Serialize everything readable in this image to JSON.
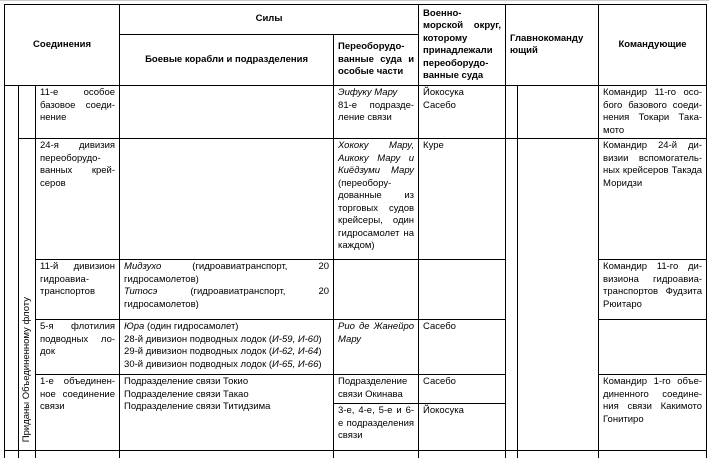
{
  "header": {
    "formations": "Соединения",
    "forces": "Силы",
    "warships": "Боевые корабли и подразделения",
    "converted": "Переоборудо­ванные суда и особые части",
    "district": "Военно-морской округ, которому принадлежали переоборудо­ванные суда",
    "commander_in_chief": "Главнокомандую­щий",
    "commanders": "Командующие"
  },
  "side_label": "Приданы Объединенному флоту",
  "rows": {
    "r1": {
      "formation": "11-е особое базовое соеди­нение",
      "converted_lines": [
        [
          {
            "t": "Эифуку Мару",
            "i": true
          }
        ],
        [
          "81-е подразде­ление связи"
        ]
      ],
      "district_lines": [
        [
          "Йокосука"
        ],
        [
          "Сасебо"
        ]
      ],
      "commander": "Командир 11-го осо­бого базового соеди­нения Токари Така­мото"
    },
    "r2": {
      "formation": "24-я дивизия переоборудо­ванных крей­серов",
      "converted_lines": [
        [
          {
            "t": "Хококу Мару, Аикоку Мару и Киёдзуми Мару ",
            "i": true
          },
          "(переобору­дованные из торговых судов крейсеры, один гидросамолет на каждом)"
        ]
      ],
      "district_lines": [
        [
          "Куре"
        ]
      ],
      "commander": "Командир 24-й ди­визии вспомогатель­ных крейсеров Такэда Моридзи"
    },
    "r3": {
      "formation": "11-й дивизион гидроавиа­транспортов",
      "ships_lines": [
        [
          {
            "t": "Мидзухо",
            "i": true
          },
          " (гидроавиатранспорт, 20 гидросамоле­тов)"
        ],
        [
          {
            "t": "Титосэ",
            "i": true
          },
          " (гидроавиатранспорт, 20 гидросамоле­тов)"
        ]
      ],
      "commander": "Командир 11-го ди­визиона гидроавиа­транспортов Фудзита Рюитаро"
    },
    "r4": {
      "formation": "5-я флотилия подводных ло­док",
      "ships_lines": [
        [
          {
            "t": "Юра",
            "i": true
          },
          " (один гидросамолет)"
        ],
        [
          "28-й дивизион подводных лодок (",
          {
            "t": "И-59, И-60",
            "i": true
          },
          ")"
        ],
        [
          "29-й дивизион подводных лодок (",
          {
            "t": "И-62, И-64",
            "i": true
          },
          ")"
        ],
        [
          "30-й дивизион подводных лодок (",
          {
            "t": "И-65, И-66",
            "i": true
          },
          ")"
        ]
      ],
      "converted_lines": [
        [
          {
            "t": "Рио де Жанейро Мару",
            "i": true
          }
        ]
      ],
      "district_lines": [
        [
          "Сасебо"
        ]
      ]
    },
    "r5": {
      "formation": "1-е объединен­ное соедине­ние связи",
      "ships_lines": [
        [
          "Подразделение связи Токио"
        ],
        [
          "Подразделение связи Такао"
        ],
        [
          "Подразделение связи Титидзима"
        ]
      ],
      "top": {
        "converted_lines": [
          [
            "Подразделение связи Окинава"
          ]
        ],
        "district_lines": [
          [
            "Сасебо"
          ]
        ]
      },
      "bottom": {
        "converted_lines": [
          [
            "3-е, 4-е, 5-е и 6-е подразделения связи"
          ]
        ],
        "district_lines": [
          [
            "Йокосука"
          ]
        ]
      },
      "commander": "Командир 1-го объе­диненного соедине­ния связи Какимото Гонитиро"
    }
  }
}
